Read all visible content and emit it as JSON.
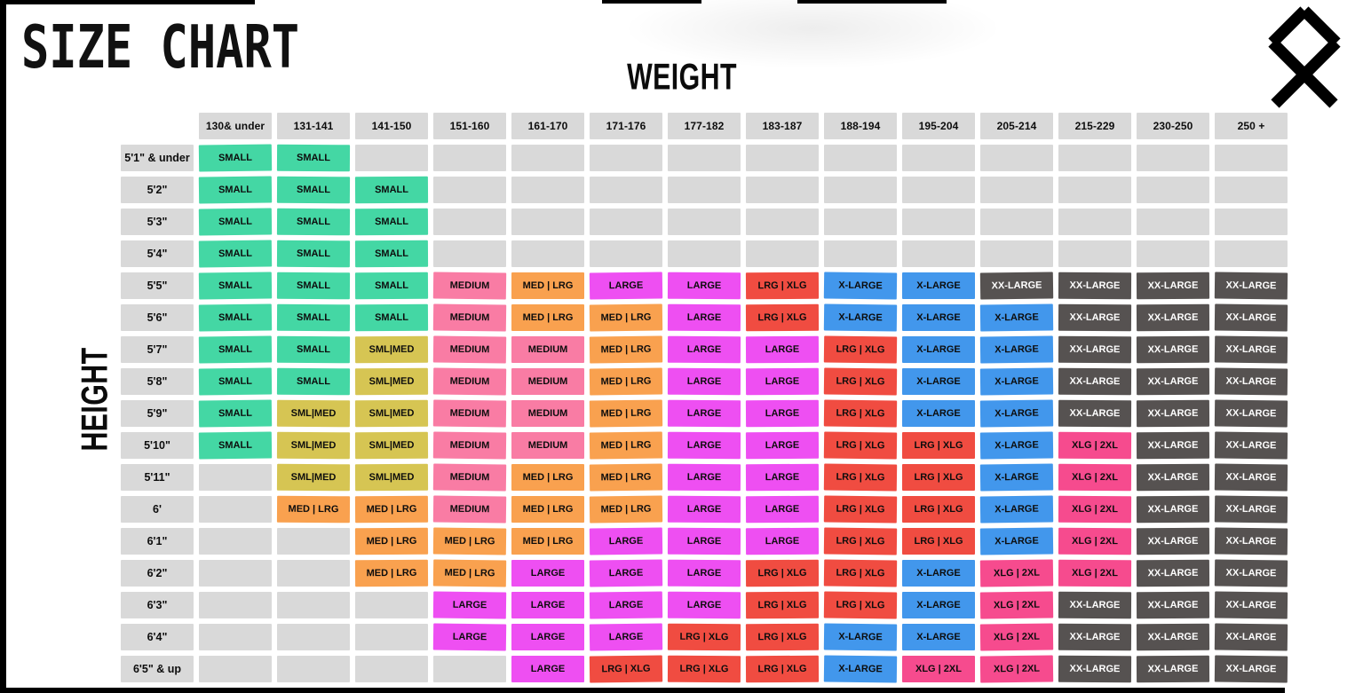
{
  "title": "SIZE CHART",
  "weight_axis_label": "WEIGHT",
  "height_axis_label": "HEIGHT",
  "logo_icon": "othala-rune-icon",
  "empty_cell_color": "#d9d9d9",
  "header_cell_color": "#d9d9d9",
  "legend_colors": {
    "SMALL": {
      "bg": "#44d7a4",
      "fg": "#0d0d0d"
    },
    "SML|MED": {
      "bg": "#d6c553",
      "fg": "#0d0d0d"
    },
    "MEDIUM": {
      "bg": "#f97ca4",
      "fg": "#0d0d0d"
    },
    "MED | LRG": {
      "bg": "#f9a14f",
      "fg": "#0d0d0d"
    },
    "LARGE": {
      "bg": "#ee4ff2",
      "fg": "#0d0d0d"
    },
    "LRG | XLG": {
      "bg": "#f04c41",
      "fg": "#0d0d0d"
    },
    "X-LARGE": {
      "bg": "#4297ec",
      "fg": "#0d0d0d"
    },
    "XLG | 2XL": {
      "bg": "#f64b8e",
      "fg": "#0d0d0d"
    },
    "XX-LARGE": {
      "bg": "#565251",
      "fg": "#ffffff"
    }
  },
  "chart_data": {
    "type": "table",
    "title": "SIZE CHART",
    "x_axis_label": "WEIGHT",
    "y_axis_label": "HEIGHT",
    "columns": [
      "130& under",
      "131-141",
      "141-150",
      "151-160",
      "161-170",
      "171-176",
      "177-182",
      "183-187",
      "188-194",
      "195-204",
      "205-214",
      "215-229",
      "230-250",
      "250 +"
    ],
    "rows": [
      {
        "height": "5'1\" & under",
        "sizes": [
          "SMALL",
          "SMALL",
          "",
          "",
          "",
          "",
          "",
          "",
          "",
          "",
          "",
          "",
          "",
          ""
        ]
      },
      {
        "height": "5'2\"",
        "sizes": [
          "SMALL",
          "SMALL",
          "SMALL",
          "",
          "",
          "",
          "",
          "",
          "",
          "",
          "",
          "",
          "",
          ""
        ]
      },
      {
        "height": "5'3\"",
        "sizes": [
          "SMALL",
          "SMALL",
          "SMALL",
          "",
          "",
          "",
          "",
          "",
          "",
          "",
          "",
          "",
          "",
          ""
        ]
      },
      {
        "height": "5'4\"",
        "sizes": [
          "SMALL",
          "SMALL",
          "SMALL",
          "",
          "",
          "",
          "",
          "",
          "",
          "",
          "",
          "",
          "",
          ""
        ]
      },
      {
        "height": "5'5\"",
        "sizes": [
          "SMALL",
          "SMALL",
          "SMALL",
          "MEDIUM",
          "MED | LRG",
          "LARGE",
          "LARGE",
          "LRG | XLG",
          "X-LARGE",
          "X-LARGE",
          "XX-LARGE",
          "XX-LARGE",
          "XX-LARGE",
          "XX-LARGE"
        ]
      },
      {
        "height": "5'6\"",
        "sizes": [
          "SMALL",
          "SMALL",
          "SMALL",
          "MEDIUM",
          "MED | LRG",
          "MED | LRG",
          "LARGE",
          "LRG | XLG",
          "X-LARGE",
          "X-LARGE",
          "X-LARGE",
          "XX-LARGE",
          "XX-LARGE",
          "XX-LARGE"
        ]
      },
      {
        "height": "5'7\"",
        "sizes": [
          "SMALL",
          "SMALL",
          "SML|MED",
          "MEDIUM",
          "MEDIUM",
          "MED | LRG",
          "LARGE",
          "LARGE",
          "LRG | XLG",
          "X-LARGE",
          "X-LARGE",
          "XX-LARGE",
          "XX-LARGE",
          "XX-LARGE"
        ]
      },
      {
        "height": "5'8\"",
        "sizes": [
          "SMALL",
          "SMALL",
          "SML|MED",
          "MEDIUM",
          "MEDIUM",
          "MED | LRG",
          "LARGE",
          "LARGE",
          "LRG | XLG",
          "X-LARGE",
          "X-LARGE",
          "XX-LARGE",
          "XX-LARGE",
          "XX-LARGE"
        ]
      },
      {
        "height": "5'9\"",
        "sizes": [
          "SMALL",
          "SML|MED",
          "SML|MED",
          "MEDIUM",
          "MEDIUM",
          "MED | LRG",
          "LARGE",
          "LARGE",
          "LRG | XLG",
          "X-LARGE",
          "X-LARGE",
          "XX-LARGE",
          "XX-LARGE",
          "XX-LARGE"
        ]
      },
      {
        "height": "5'10\"",
        "sizes": [
          "SMALL",
          "SML|MED",
          "SML|MED",
          "MEDIUM",
          "MEDIUM",
          "MED | LRG",
          "LARGE",
          "LARGE",
          "LRG | XLG",
          "LRG | XLG",
          "X-LARGE",
          "XLG | 2XL",
          "XX-LARGE",
          "XX-LARGE"
        ]
      },
      {
        "height": "5'11\"",
        "sizes": [
          "",
          "SML|MED",
          "SML|MED",
          "MEDIUM",
          "MED | LRG",
          "MED | LRG",
          "LARGE",
          "LARGE",
          "LRG | XLG",
          "LRG | XLG",
          "X-LARGE",
          "XLG | 2XL",
          "XX-LARGE",
          "XX-LARGE"
        ]
      },
      {
        "height": "6'",
        "sizes": [
          "",
          "MED | LRG",
          "MED | LRG",
          "MEDIUM",
          "MED | LRG",
          "MED | LRG",
          "LARGE",
          "LARGE",
          "LRG | XLG",
          "LRG | XLG",
          "X-LARGE",
          "XLG | 2XL",
          "XX-LARGE",
          "XX-LARGE"
        ]
      },
      {
        "height": "6'1\"",
        "sizes": [
          "",
          "",
          "MED | LRG",
          "MED | LRG",
          "MED | LRG",
          "LARGE",
          "LARGE",
          "LARGE",
          "LRG | XLG",
          "LRG | XLG",
          "X-LARGE",
          "XLG | 2XL",
          "XX-LARGE",
          "XX-LARGE"
        ]
      },
      {
        "height": "6'2\"",
        "sizes": [
          "",
          "",
          "MED | LRG",
          "MED | LRG",
          "LARGE",
          "LARGE",
          "LARGE",
          "LRG | XLG",
          "LRG | XLG",
          "X-LARGE",
          "XLG | 2XL",
          "XLG | 2XL",
          "XX-LARGE",
          "XX-LARGE"
        ]
      },
      {
        "height": "6'3\"",
        "sizes": [
          "",
          "",
          "",
          "LARGE",
          "LARGE",
          "LARGE",
          "LARGE",
          "LRG | XLG",
          "LRG | XLG",
          "X-LARGE",
          "XLG | 2XL",
          "XX-LARGE",
          "XX-LARGE",
          "XX-LARGE"
        ]
      },
      {
        "height": "6'4\"",
        "sizes": [
          "",
          "",
          "",
          "LARGE",
          "LARGE",
          "LARGE",
          "LRG | XLG",
          "LRG | XLG",
          "X-LARGE",
          "X-LARGE",
          "XLG | 2XL",
          "XX-LARGE",
          "XX-LARGE",
          "XX-LARGE"
        ]
      },
      {
        "height": "6'5\" & up",
        "sizes": [
          "",
          "",
          "",
          "",
          "LARGE",
          "LRG | XLG",
          "LRG | XLG",
          "LRG | XLG",
          "X-LARGE",
          "XLG | 2XL",
          "XLG | 2XL",
          "XX-LARGE",
          "XX-LARGE",
          "XX-LARGE"
        ]
      }
    ]
  }
}
